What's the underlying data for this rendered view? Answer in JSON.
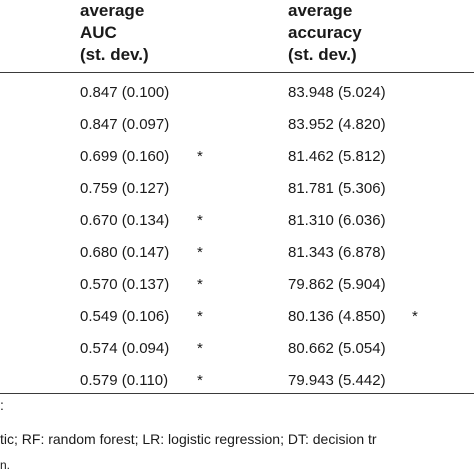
{
  "table": {
    "headers": {
      "auc": [
        "average",
        "AUC",
        "(st. dev.)"
      ],
      "accuracy": [
        "average",
        "accuracy",
        "(st. dev.)"
      ]
    },
    "rows": [
      {
        "auc": "0.847 (0.100)",
        "auc_mark": "",
        "acc": "83.948 (5.024)",
        "acc_mark": ""
      },
      {
        "auc": "0.847 (0.097)",
        "auc_mark": "",
        "acc": "83.952 (4.820)",
        "acc_mark": ""
      },
      {
        "auc": "0.699 (0.160)",
        "auc_mark": "*",
        "acc": "81.462 (5.812)",
        "acc_mark": ""
      },
      {
        "auc": "0.759 (0.127)",
        "auc_mark": "",
        "acc": "81.781 (5.306)",
        "acc_mark": ""
      },
      {
        "auc": "0.670 (0.134)",
        "auc_mark": "*",
        "acc": "81.310 (6.036)",
        "acc_mark": ""
      },
      {
        "auc": "0.680 (0.147)",
        "auc_mark": "*",
        "acc": "81.343 (6.878)",
        "acc_mark": ""
      },
      {
        "auc": "0.570 (0.137)",
        "auc_mark": "*",
        "acc": "79.862 (5.904)",
        "acc_mark": ""
      },
      {
        "auc": "0.549 (0.106)",
        "auc_mark": "*",
        "acc": "80.136 (4.850)",
        "acc_mark": "*"
      },
      {
        "auc": "0.574 (0.094)",
        "auc_mark": "*",
        "acc": "80.662 (5.054)",
        "acc_mark": ""
      },
      {
        "auc": "0.579 (0.110)",
        "auc_mark": "*",
        "acc": "79.943 (5.442)",
        "acc_mark": ""
      }
    ]
  },
  "footnotes": {
    "line1": ":",
    "line2": "tic; RF: random forest; LR: logistic regression; DT: decision tr",
    "line3": "n."
  }
}
